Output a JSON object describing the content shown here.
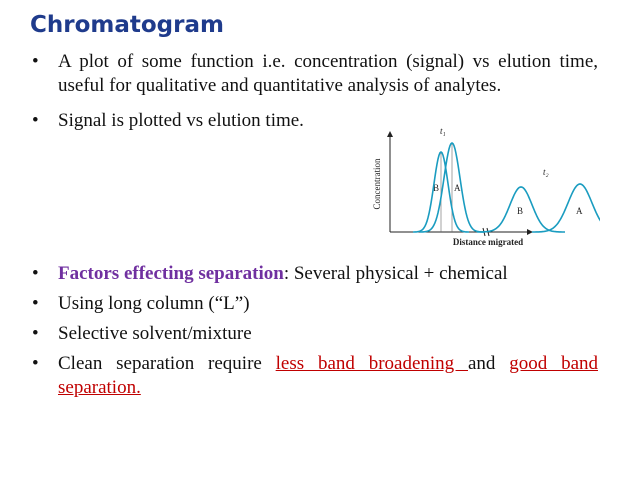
{
  "title": "Chromatogram",
  "bullets_top": [
    {
      "parts": [
        "A plot of some function i.e. concentration (signal) vs elution time, useful for qualitative and quantitative analysis of analytes."
      ]
    },
    {
      "parts": [
        "Signal is plotted vs elution time."
      ]
    }
  ],
  "figure": {
    "y_axis_label": "Concentration",
    "x_axis_label": "Distance migrated",
    "time_labels": [
      "t₁",
      "t₂"
    ],
    "peak_labels": [
      "B",
      "A",
      "B",
      "A"
    ]
  },
  "bullets_bottom": [
    {
      "parts": [
        "Factors effecting separation",
        ": Several physical + chemical"
      ]
    },
    {
      "parts": [
        "Using long column (“L”)"
      ]
    },
    {
      "parts": [
        "Selective solvent/mixture"
      ]
    },
    {
      "parts": [
        "Clean separation require ",
        "less band broadening ",
        "and ",
        "good band separation."
      ]
    }
  ]
}
